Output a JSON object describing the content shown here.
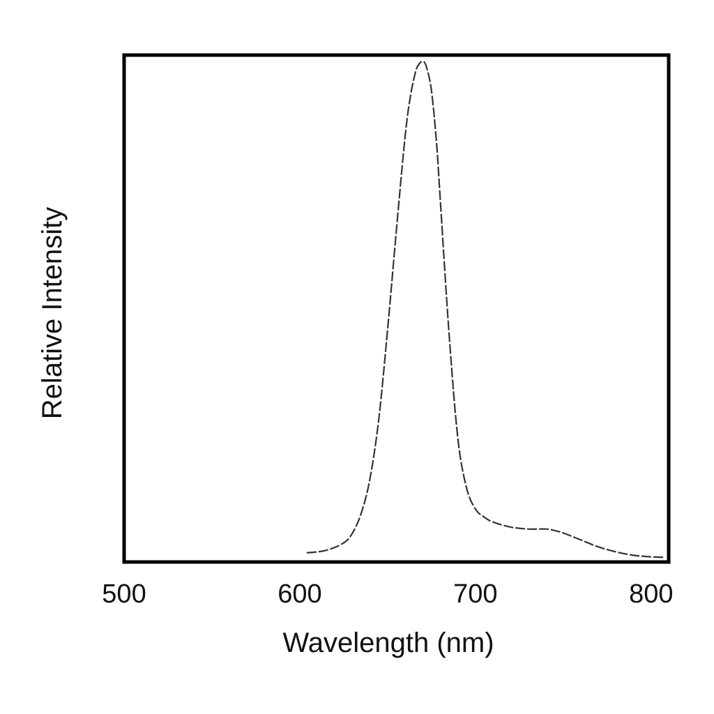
{
  "chart_data": {
    "type": "line",
    "title": "",
    "xlabel": "Wavelength (nm)",
    "ylabel": "Relative Intensity",
    "xlim": [
      500,
      810
    ],
    "ylim": [
      0,
      1.0
    ],
    "xticks": [
      "500",
      "600",
      "700",
      "800"
    ],
    "yticks": [],
    "grid": false,
    "legend": "none",
    "line_color": "#333333",
    "line_style": "dashed",
    "series": [
      {
        "x": [
          604,
          615,
          625,
          630,
          635,
          640,
          645,
          650,
          655,
          660,
          663,
          666,
          668,
          670,
          672,
          675,
          678,
          680,
          685,
          690,
          695,
          700,
          705,
          710,
          720,
          730,
          740,
          745,
          750,
          760,
          770,
          780,
          790,
          800,
          808
        ],
        "y": [
          0.01,
          0.015,
          0.03,
          0.05,
          0.09,
          0.16,
          0.28,
          0.46,
          0.66,
          0.85,
          0.93,
          0.98,
          0.995,
          1.0,
          0.99,
          0.94,
          0.83,
          0.72,
          0.45,
          0.24,
          0.14,
          0.098,
          0.082,
          0.072,
          0.062,
          0.058,
          0.058,
          0.055,
          0.05,
          0.036,
          0.022,
          0.012,
          0.005,
          0.002,
          0.001
        ]
      }
    ]
  }
}
